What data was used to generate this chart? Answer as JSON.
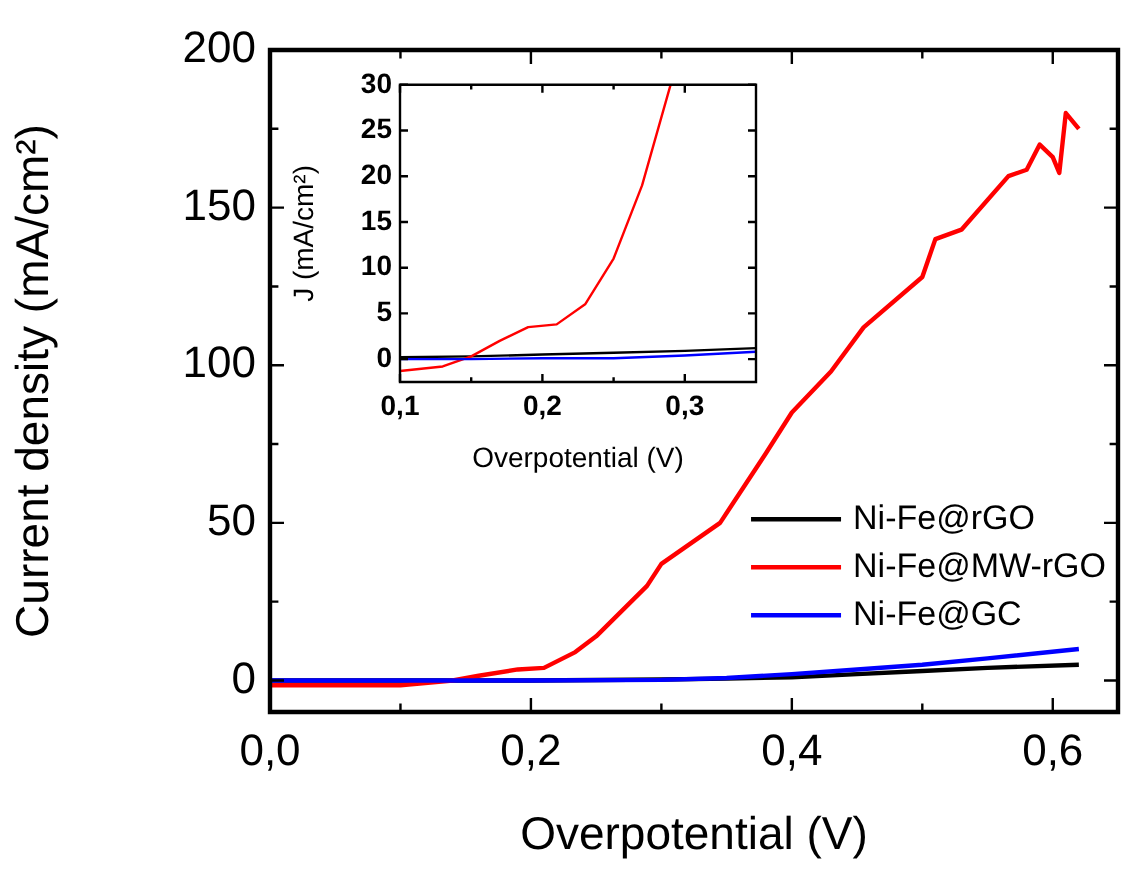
{
  "chart_data": [
    {
      "type": "line",
      "xlabel": "Overpotential (V)",
      "ylabel": "Current density (mA/cm²)",
      "xlim": [
        0,
        0.65
      ],
      "ylim": [
        -10,
        200
      ],
      "xticks": [
        {
          "value": 0,
          "label": "0,0"
        },
        {
          "value": 0.1,
          "label": null
        },
        {
          "value": 0.2,
          "label": "0,2"
        },
        {
          "value": 0.3,
          "label": null
        },
        {
          "value": 0.4,
          "label": "0,4"
        },
        {
          "value": 0.5,
          "label": null
        },
        {
          "value": 0.6,
          "label": "0,6"
        }
      ],
      "yticks": [
        0,
        {
          "value": 25,
          "label": null
        },
        50,
        {
          "value": 75,
          "label": null
        },
        100,
        {
          "value": 125,
          "label": null
        },
        150,
        {
          "value": 175,
          "label": null
        },
        200
      ],
      "grid": false,
      "legend": "bottom right",
      "marker": "none",
      "line_style": "solid",
      "series": [
        {
          "name": "Ni-Fe@rGO",
          "color": "#000000",
          "x": [
            0,
            0.1,
            0.2,
            0.3,
            0.35,
            0.4,
            0.45,
            0.5,
            0.55,
            0.62
          ],
          "values": [
            0,
            0,
            0,
            0.3,
            0.6,
            1,
            2,
            3,
            4,
            5
          ]
        },
        {
          "name": "Ni-Fe@MW-rGO",
          "color": "#ff0000",
          "x": [
            0,
            0.1,
            0.14,
            0.16,
            0.19,
            0.21,
            0.234,
            0.25,
            0.289,
            0.3,
            0.345,
            0.38,
            0.4,
            0.43,
            0.455,
            0.5,
            0.51,
            0.53,
            0.566,
            0.58,
            0.59,
            0.6,
            0.605,
            0.61,
            0.62
          ],
          "values": [
            -1.5,
            -1.5,
            0,
            1.5,
            3.5,
            4,
            9,
            14,
            30,
            37,
            50,
            72,
            85,
            98,
            112,
            128,
            140,
            143,
            160,
            162,
            170,
            166,
            161,
            180,
            175
          ]
        },
        {
          "name": "Ni-Fe@GC",
          "color": "#0000ff",
          "x": [
            0,
            0.1,
            0.2,
            0.3,
            0.35,
            0.4,
            0.45,
            0.5,
            0.55,
            0.62
          ],
          "values": [
            0,
            0,
            0,
            0.2,
            0.8,
            2,
            3.5,
            5,
            7,
            10
          ]
        }
      ]
    },
    {
      "type": "line",
      "xlabel": "Overpotential (V)",
      "ylabel": "J (mA/cm²)",
      "xlim": [
        0.1,
        0.35
      ],
      "ylim": [
        -2.5,
        30
      ],
      "xticks": [
        {
          "value": 0.1,
          "label": "0,1"
        },
        {
          "value": 0.15,
          "label": null
        },
        {
          "value": 0.2,
          "label": "0,2"
        },
        {
          "value": 0.25,
          "label": null
        },
        {
          "value": 0.3,
          "label": "0,3"
        }
      ],
      "yticks": [
        0,
        5,
        10,
        15,
        20,
        25,
        30
      ],
      "grid": false,
      "legend": false,
      "marker": "none",
      "line_style": "solid",
      "series": [
        {
          "color": "#000000",
          "x": [
            0.1,
            0.15,
            0.2,
            0.25,
            0.3,
            0.35
          ],
          "values": [
            0.2,
            0.3,
            0.5,
            0.7,
            0.9,
            1.2
          ]
        },
        {
          "color": "#ff0000",
          "x": [
            0.1,
            0.13,
            0.15,
            0.17,
            0.19,
            0.21,
            0.23,
            0.25,
            0.27,
            0.29
          ],
          "values": [
            -1.3,
            -0.8,
            0.3,
            2,
            3.5,
            3.8,
            6,
            11,
            19,
            30
          ]
        },
        {
          "color": "#0000ff",
          "x": [
            0.1,
            0.15,
            0.2,
            0.25,
            0.3,
            0.35
          ],
          "values": [
            0,
            0,
            0.1,
            0.1,
            0.4,
            0.8
          ]
        }
      ]
    }
  ]
}
